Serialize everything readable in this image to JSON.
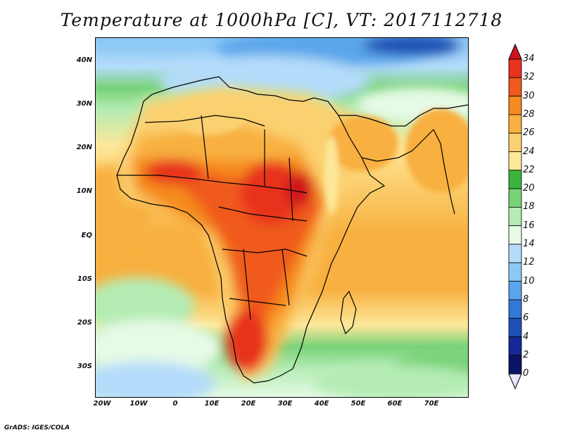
{
  "title": "Temperature at 1000hPa [C], VT: 2017112718",
  "footer": "GrADS: IGES/COLA",
  "map": {
    "lat_labels": [
      "40N",
      "30N",
      "20N",
      "10N",
      "EQ",
      "10S",
      "20S",
      "30S"
    ],
    "lon_labels": [
      "20W",
      "10W",
      "0",
      "10E",
      "20E",
      "30E",
      "40E",
      "50E",
      "60E",
      "70E"
    ]
  },
  "colorbar": {
    "labels": [
      "34",
      "32",
      "30",
      "28",
      "26",
      "24",
      "22",
      "20",
      "18",
      "16",
      "14",
      "12",
      "10",
      "8",
      "6",
      "4",
      "2",
      "0"
    ],
    "colors": [
      "#e8321e",
      "#f05a1e",
      "#f58a1e",
      "#f8b040",
      "#fbd070",
      "#fde89a",
      "#3cb43c",
      "#78d278",
      "#b4ecb4",
      "#e6fae6",
      "#b4dcfa",
      "#8cc8f5",
      "#5aa5eb",
      "#3278d7",
      "#1e50b4",
      "#142896",
      "#0a1464"
    ],
    "over_color": "#d2141e",
    "under_color": "#e6e6fa"
  }
}
